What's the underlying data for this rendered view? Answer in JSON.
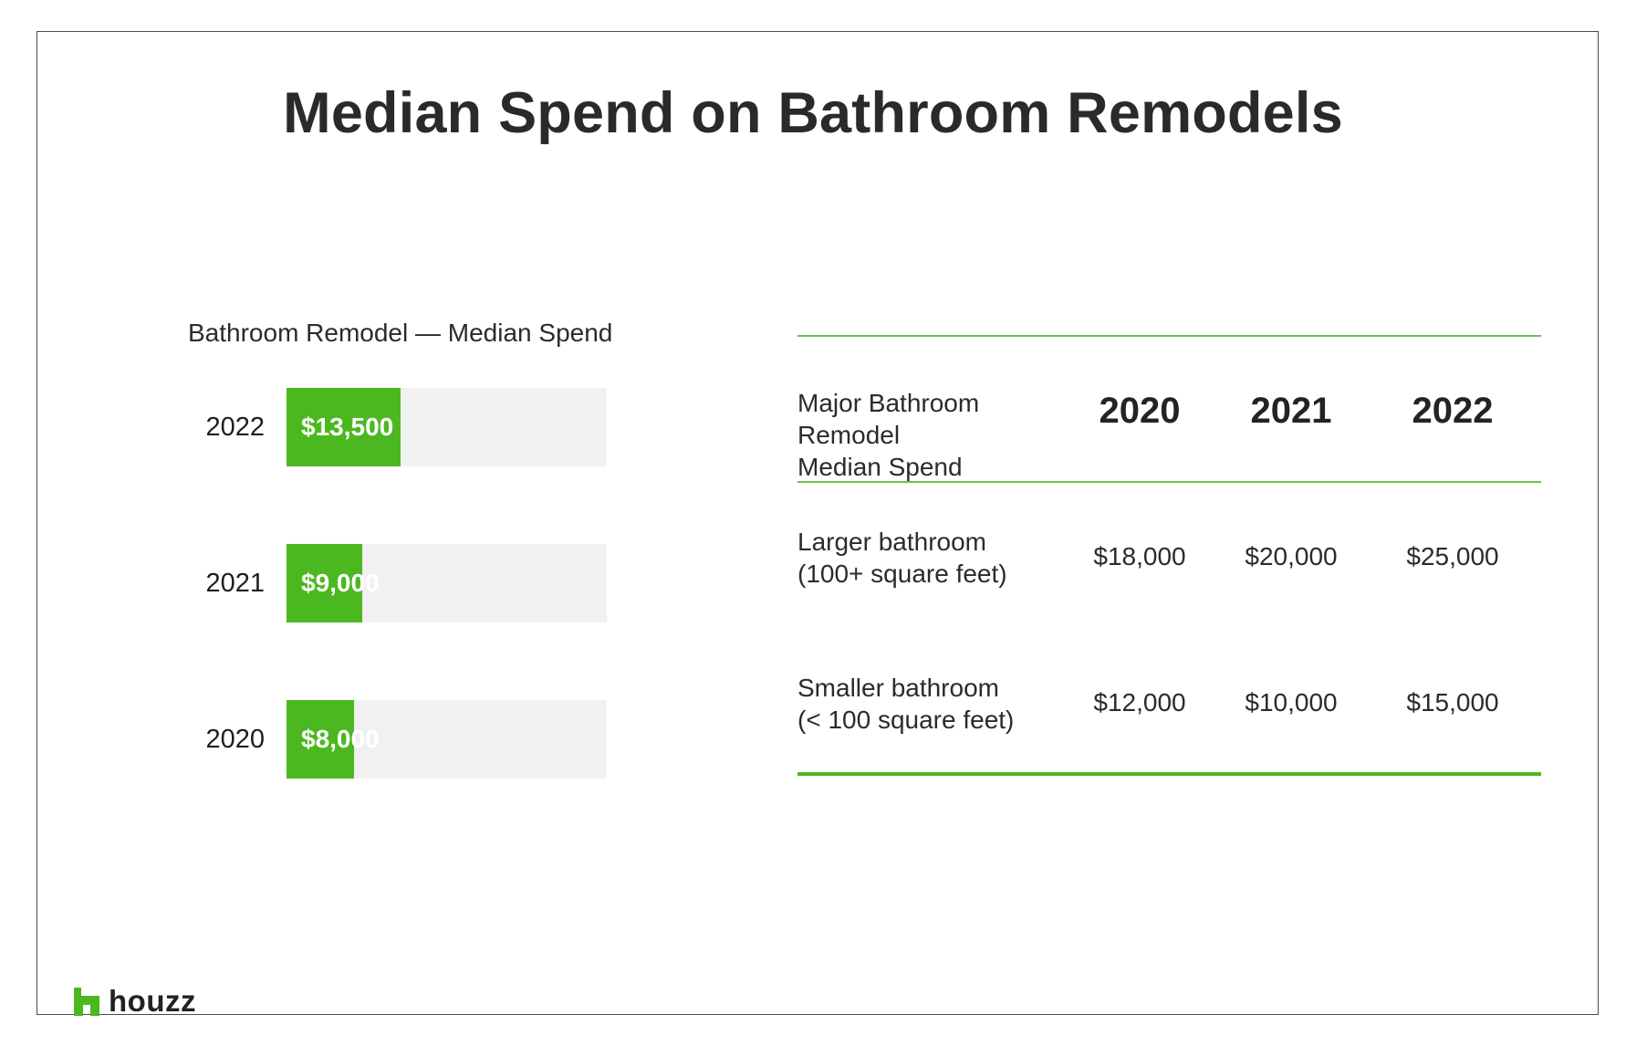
{
  "title": "Median Spend on Bathroom Remodels",
  "chart_data": [
    {
      "type": "bar",
      "orientation": "horizontal",
      "title": "Bathroom Remodel — Median Spend",
      "categories": [
        "2022",
        "2021",
        "2020"
      ],
      "values": [
        13500,
        9000,
        8000
      ],
      "value_labels": [
        "$13,500",
        "$9,000",
        "$8,000"
      ],
      "xlim": [
        0,
        38000
      ],
      "bar_color": "#4cb820",
      "track_color": "#f1f1f1"
    },
    {
      "type": "table",
      "header_label": "Major Bathroom Remodel Median Spend",
      "header_lines": [
        "Major Bathroom",
        "Remodel",
        "Median Spend"
      ],
      "columns": [
        "2020",
        "2021",
        "2022"
      ],
      "rows": [
        {
          "label_lines": [
            "Larger bathroom",
            "(100+ square feet)"
          ],
          "values": [
            "$18,000",
            "$20,000",
            "$25,000"
          ]
        },
        {
          "label_lines": [
            "Smaller bathroom",
            "(< 100 square feet)"
          ],
          "values": [
            "$12,000",
            "$10,000",
            "$15,000"
          ]
        }
      ],
      "rule_color": "#6cc24a"
    }
  ],
  "logo": {
    "text": "houzz",
    "color": "#4cb820"
  }
}
